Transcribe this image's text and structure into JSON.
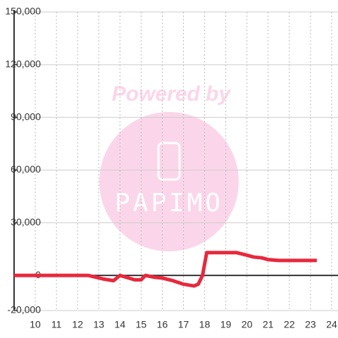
{
  "chart_data": {
    "type": "line",
    "x": [
      9,
      12.5,
      13.2,
      13.7,
      14.0,
      14.7,
      15.0,
      15.2,
      15.6,
      16.0,
      16.5,
      17.0,
      17.5,
      17.7,
      17.9,
      18.1,
      19.5,
      20.0,
      20.3,
      20.7,
      21.0,
      21.5,
      23.3
    ],
    "series": [
      {
        "color": "#e8283c",
        "values": [
          0,
          0,
          -2000,
          -3000,
          0,
          -2500,
          -2500,
          0,
          -1000,
          -1500,
          -3000,
          -5000,
          -6000,
          -5000,
          0,
          13000,
          13000,
          11500,
          10500,
          10000,
          9000,
          8500,
          8500
        ]
      }
    ],
    "xlim": [
      9,
      24.3
    ],
    "xticks": [
      10,
      11,
      12,
      13,
      14,
      15,
      16,
      17,
      18,
      19,
      20,
      21,
      22,
      23,
      24
    ],
    "ylim": [
      -20000,
      150000
    ],
    "yticks": [
      {
        "value": -20000,
        "label": "-20,000"
      },
      0,
      {
        "value": 30000,
        "label": "30,000"
      },
      {
        "value": 60000,
        "label": "60,000"
      },
      {
        "value": 90000,
        "label": "90,000"
      },
      {
        "value": 120000,
        "label": "120,000"
      },
      {
        "value": 150000,
        "label": "150,000"
      }
    ],
    "grid": true,
    "watermark": {
      "line1": "Powered by",
      "line2": "PAPIMO"
    }
  }
}
